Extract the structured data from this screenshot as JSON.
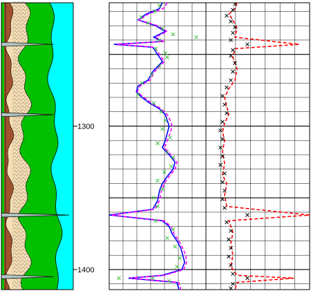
{
  "chart_data": {
    "type": "line",
    "title": "",
    "y_axis": {
      "label": "",
      "range": [
        1214,
        1414
      ],
      "tick_labels": [
        "1300",
        "1400"
      ],
      "direction": "down"
    },
    "colors": {
      "background": "#ffffff",
      "grid": "#000000",
      "water": "#00ffff",
      "formation": "#00c000",
      "sandstone": "#f5deb3",
      "shale": "#a0522d",
      "coal": "#7a4a1a",
      "track2_line_a": "#0000ff",
      "track2_line_b": "#ff00ff",
      "track2_markers": "#40c040",
      "track3_line": "#ff0000",
      "track3_markers": "#000000"
    },
    "lithology_column": {
      "coal_spikes_depth": [
        1243,
        1292,
        1362,
        1405
      ]
    },
    "tracks": [
      {
        "name": "",
        "series": [
          {
            "name": "",
            "style": "solid-line",
            "points": [
              [
                1214,
                0.55
              ],
              [
                1218,
                0.52
              ],
              [
                1222,
                0.38
              ],
              [
                1226,
                0.3
              ],
              [
                1230,
                0.48
              ],
              [
                1234,
                0.58
              ],
              [
                1238,
                0.46
              ],
              [
                1241,
                0.55
              ],
              [
                1243,
                0.05
              ],
              [
                1245,
                0.45
              ],
              [
                1250,
                0.5
              ],
              [
                1255,
                0.55
              ],
              [
                1262,
                0.45
              ],
              [
                1268,
                0.4
              ],
              [
                1272,
                0.3
              ],
              [
                1276,
                0.28
              ],
              [
                1280,
                0.34
              ],
              [
                1284,
                0.42
              ],
              [
                1288,
                0.52
              ],
              [
                1292,
                0.58
              ],
              [
                1296,
                0.6
              ],
              [
                1300,
                0.62
              ],
              [
                1305,
                0.6
              ],
              [
                1310,
                0.58
              ],
              [
                1315,
                0.55
              ],
              [
                1320,
                0.62
              ],
              [
                1325,
                0.68
              ],
              [
                1330,
                0.66
              ],
              [
                1335,
                0.6
              ],
              [
                1340,
                0.55
              ],
              [
                1345,
                0.52
              ],
              [
                1352,
                0.5
              ],
              [
                1358,
                0.45
              ],
              [
                1362,
                0.0
              ],
              [
                1366,
                0.55
              ],
              [
                1370,
                0.62
              ],
              [
                1375,
                0.65
              ],
              [
                1380,
                0.7
              ],
              [
                1385,
                0.74
              ],
              [
                1390,
                0.76
              ],
              [
                1395,
                0.78
              ],
              [
                1400,
                0.75
              ],
              [
                1404,
                0.55
              ],
              [
                1406,
                0.2
              ],
              [
                1409,
                0.7
              ],
              [
                1414,
                0.72
              ]
            ]
          },
          {
            "name": "",
            "style": "dashed-line",
            "points": [
              [
                1214,
                0.6
              ],
              [
                1218,
                0.56
              ],
              [
                1222,
                0.4
              ],
              [
                1226,
                0.31
              ],
              [
                1230,
                0.5
              ],
              [
                1234,
                0.6
              ],
              [
                1238,
                0.48
              ],
              [
                1241,
                0.56
              ],
              [
                1243,
                0.08
              ],
              [
                1245,
                0.47
              ],
              [
                1250,
                0.52
              ],
              [
                1255,
                0.57
              ],
              [
                1262,
                0.47
              ],
              [
                1268,
                0.42
              ],
              [
                1272,
                0.32
              ],
              [
                1276,
                0.29
              ],
              [
                1280,
                0.36
              ],
              [
                1284,
                0.44
              ],
              [
                1288,
                0.54
              ],
              [
                1292,
                0.6
              ],
              [
                1296,
                0.63
              ],
              [
                1300,
                0.65
              ],
              [
                1305,
                0.63
              ],
              [
                1310,
                0.6
              ],
              [
                1315,
                0.57
              ],
              [
                1320,
                0.64
              ],
              [
                1325,
                0.7
              ],
              [
                1330,
                0.68
              ],
              [
                1335,
                0.62
              ],
              [
                1340,
                0.57
              ],
              [
                1345,
                0.54
              ],
              [
                1352,
                0.52
              ],
              [
                1358,
                0.47
              ],
              [
                1362,
                0.02
              ],
              [
                1366,
                0.57
              ],
              [
                1370,
                0.64
              ],
              [
                1375,
                0.67
              ],
              [
                1380,
                0.72
              ],
              [
                1385,
                0.76
              ],
              [
                1390,
                0.79
              ],
              [
                1395,
                0.8
              ],
              [
                1400,
                0.77
              ],
              [
                1404,
                0.57
              ],
              [
                1406,
                0.22
              ],
              [
                1409,
                0.72
              ],
              [
                1414,
                0.74
              ]
            ]
          },
          {
            "name": "",
            "style": "x-markers",
            "points": [
              [
                1216,
                0.52
              ],
              [
                1220,
                0.47
              ],
              [
                1224,
                0.33
              ],
              [
                1228,
                0.4
              ],
              [
                1232,
                0.55
              ],
              [
                1236,
                0.66
              ],
              [
                1238,
                0.9
              ],
              [
                1240,
                0.52
              ],
              [
                1246,
                0.48
              ],
              [
                1249,
                0.58
              ],
              [
                1252,
                0.6
              ],
              [
                1258,
                0.52
              ],
              [
                1264,
                0.44
              ],
              [
                1270,
                0.34
              ],
              [
                1278,
                0.3
              ],
              [
                1284,
                0.46
              ],
              [
                1290,
                0.54
              ],
              [
                1296,
                0.58
              ],
              [
                1302,
                0.55
              ],
              [
                1308,
                0.63
              ],
              [
                1312,
                0.5
              ],
              [
                1318,
                0.6
              ],
              [
                1322,
                0.66
              ],
              [
                1328,
                0.64
              ],
              [
                1332,
                0.57
              ],
              [
                1338,
                0.5
              ],
              [
                1344,
                0.55
              ],
              [
                1350,
                0.46
              ],
              [
                1356,
                0.5
              ],
              [
                1366,
                0.48
              ],
              [
                1372,
                0.66
              ],
              [
                1378,
                0.6
              ],
              [
                1384,
                0.68
              ],
              [
                1392,
                0.73
              ],
              [
                1398,
                0.7
              ],
              [
                1406,
                0.1
              ],
              [
                1406,
                0.45
              ],
              [
                1408,
                0.62
              ]
            ]
          }
        ]
      },
      {
        "name": "",
        "series": [
          {
            "name": "",
            "style": "dashed-line",
            "points": [
              [
                1214,
                0.3
              ],
              [
                1218,
                0.28
              ],
              [
                1222,
                0.22
              ],
              [
                1226,
                0.26
              ],
              [
                1232,
                0.3
              ],
              [
                1238,
                0.28
              ],
              [
                1243,
                0.9
              ],
              [
                1246,
                0.28
              ],
              [
                1252,
                0.26
              ],
              [
                1260,
                0.3
              ],
              [
                1268,
                0.28
              ],
              [
                1274,
                0.22
              ],
              [
                1280,
                0.18
              ],
              [
                1286,
                0.2
              ],
              [
                1292,
                0.22
              ],
              [
                1298,
                0.18
              ],
              [
                1304,
                0.16
              ],
              [
                1310,
                0.18
              ],
              [
                1318,
                0.16
              ],
              [
                1326,
                0.18
              ],
              [
                1334,
                0.16
              ],
              [
                1340,
                0.2
              ],
              [
                1348,
                0.18
              ],
              [
                1356,
                0.2
              ],
              [
                1362,
                1.0
              ],
              [
                1366,
                0.22
              ],
              [
                1374,
                0.26
              ],
              [
                1382,
                0.24
              ],
              [
                1390,
                0.26
              ],
              [
                1398,
                0.24
              ],
              [
                1404,
                0.3
              ],
              [
                1406,
                0.85
              ],
              [
                1409,
                0.3
              ],
              [
                1414,
                0.28
              ]
            ]
          },
          {
            "name": "",
            "style": "x-markers-dense",
            "points": [
              [
                1215,
                0.28
              ],
              [
                1219,
                0.26
              ],
              [
                1223,
                0.2
              ],
              [
                1227,
                0.24
              ],
              [
                1231,
                0.28
              ],
              [
                1235,
                0.26
              ],
              [
                1240,
                0.24
              ],
              [
                1243,
                0.4
              ],
              [
                1247,
                0.26
              ],
              [
                1251,
                0.24
              ],
              [
                1256,
                0.28
              ],
              [
                1262,
                0.26
              ],
              [
                1268,
                0.24
              ],
              [
                1273,
                0.2
              ],
              [
                1279,
                0.16
              ],
              [
                1285,
                0.18
              ],
              [
                1291,
                0.2
              ],
              [
                1297,
                0.16
              ],
              [
                1303,
                0.14
              ],
              [
                1309,
                0.16
              ],
              [
                1315,
                0.14
              ],
              [
                1321,
                0.16
              ],
              [
                1327,
                0.14
              ],
              [
                1333,
                0.18
              ],
              [
                1339,
                0.16
              ],
              [
                1345,
                0.18
              ],
              [
                1351,
                0.16
              ],
              [
                1357,
                0.18
              ],
              [
                1362,
                0.4
              ],
              [
                1367,
                0.2
              ],
              [
                1373,
                0.24
              ],
              [
                1379,
                0.22
              ],
              [
                1385,
                0.24
              ],
              [
                1391,
                0.22
              ],
              [
                1397,
                0.24
              ],
              [
                1403,
                0.26
              ],
              [
                1406,
                0.4
              ],
              [
                1410,
                0.26
              ],
              [
                1413,
                0.24
              ]
            ]
          }
        ]
      }
    ]
  }
}
